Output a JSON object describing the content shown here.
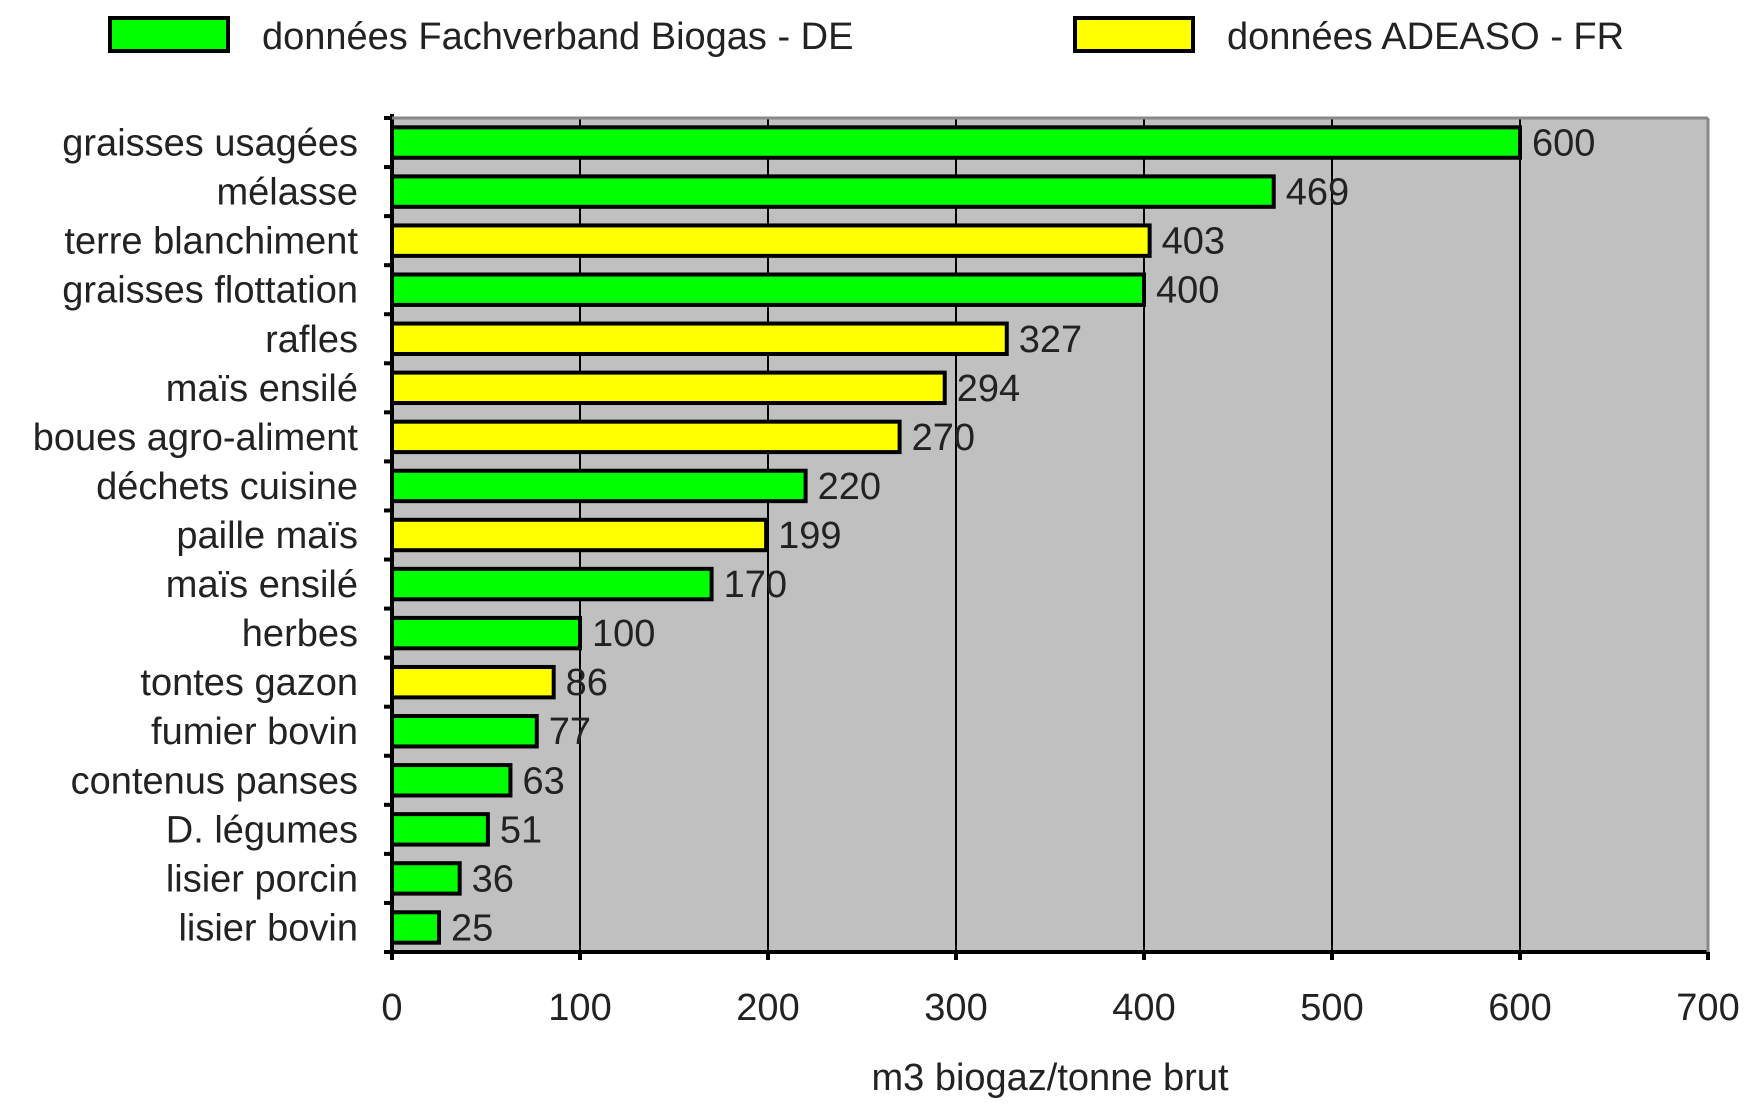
{
  "chart_data": {
    "type": "bar",
    "orientation": "horizontal",
    "title": "",
    "xlabel": "m3 biogaz/tonne brut",
    "ylabel": "",
    "xlim": [
      0,
      700
    ],
    "xticks": [
      0,
      100,
      200,
      300,
      400,
      500,
      600,
      700
    ],
    "tick_labels": [
      "0",
      "100",
      "200",
      "300",
      "400",
      "500",
      "600",
      "700"
    ],
    "grid": "vertical",
    "legend_position": "top",
    "series": [
      {
        "name": "données Fachverband Biogas - DE",
        "color": "#00ff00"
      },
      {
        "name": "données ADEASO - FR",
        "color": "#ffff00"
      }
    ],
    "categories": [
      "graisses usagées",
      "mélasse",
      "terre blanchiment",
      "graisses flottation",
      "rafles",
      "maïs ensilé",
      "boues agro-aliment",
      "déchets cuisine",
      "paille maïs",
      "maïs ensilé",
      "herbes",
      "tontes gazon",
      "fumier bovin",
      "contenus panses",
      "D. légumes",
      "lisier porcin",
      "lisier bovin"
    ],
    "values": [
      600,
      469,
      403,
      400,
      327,
      294,
      270,
      220,
      199,
      170,
      100,
      86,
      77,
      63,
      51,
      36,
      25
    ],
    "value_labels": [
      "600",
      "469",
      "403",
      "400",
      "327",
      "294",
      "270",
      "220",
      "199",
      "170",
      "100",
      "86",
      "77",
      "63",
      "51",
      "36",
      "25"
    ],
    "bar_series": [
      0,
      0,
      1,
      0,
      1,
      1,
      1,
      0,
      1,
      0,
      0,
      1,
      0,
      0,
      0,
      0,
      0
    ]
  },
  "colors": {
    "plot_background": "#c0c0c0",
    "gridline": "#000000",
    "bar_outline": "#000000"
  }
}
